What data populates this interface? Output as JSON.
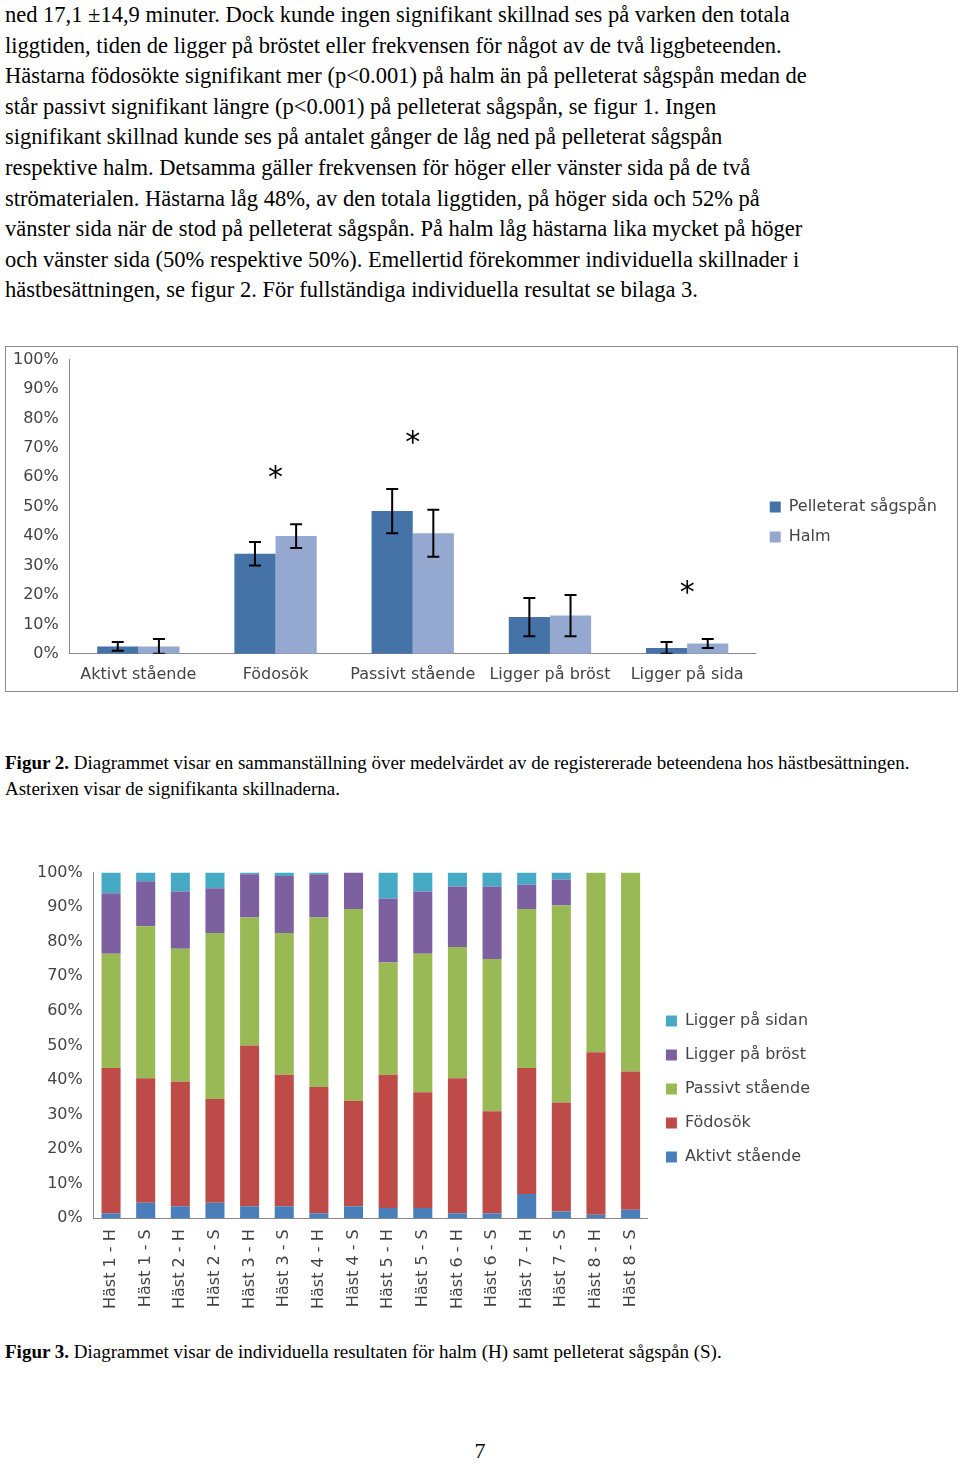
{
  "paragraph_lines": [
    "ned 17,1 ±14,9 minuter. Dock kunde ingen signifikant skillnad ses på varken den totala",
    "liggtiden, tiden de ligger på bröstet eller frekvensen för något av de två liggbeteenden.",
    "Hästarna födosökte signifikant mer (p<0.001) på halm än på pelleterat sågspån medan de",
    "står passivt signifikant längre (p<0.001) på pelleterat sågspån, se figur 1. Ingen",
    "signifikant skillnad kunde ses på antalet gånger de låg ned på pelleterat sågspån",
    "respektive halm. Detsamma gäller frekvensen för höger eller vänster sida på de två",
    "strömaterialen. Hästarna låg 48%, av den totala liggtiden, på höger sida och 52% på",
    "vänster sida när de stod på pelleterat sågspån. På halm låg hästarna lika mycket på höger",
    "och vänster sida (50% respektive 50%). Emellertid förekommer individuella skillnader i",
    "hästbesättningen, se figur 2. För fullständiga individuella resultat se bilaga 3."
  ],
  "chart_data": [
    {
      "type": "bar",
      "categories": [
        "Aktivt stående",
        "Födosök",
        "Passivt stående",
        "Ligger på bröst",
        "Ligger på sida"
      ],
      "series": [
        {
          "name": "Pelleterat sågspån",
          "color": "#4572a7",
          "values": [
            2.5,
            34,
            48.5,
            12.5,
            2
          ],
          "errors": [
            1.5,
            4,
            7.5,
            6.5,
            2
          ]
        },
        {
          "name": "Halm",
          "color": "#95a9d0",
          "values": [
            2.5,
            40,
            41,
            13,
            3.5
          ],
          "errors": [
            2.5,
            4,
            8,
            7,
            1.5
          ]
        }
      ],
      "annotations": [
        {
          "category": "Födosök",
          "text": "*"
        },
        {
          "category": "Passivt stående",
          "text": "*"
        },
        {
          "category": "Ligger på sida",
          "text": "*"
        }
      ],
      "ylim": [
        0,
        100
      ],
      "yticks": [
        {
          "value": 0,
          "label": "0%"
        },
        {
          "value": 10,
          "label": "10%"
        },
        {
          "value": 20,
          "label": "20%"
        },
        {
          "value": 30,
          "label": "30%"
        },
        {
          "value": 40,
          "label": "40%"
        },
        {
          "value": 50,
          "label": "50%"
        },
        {
          "value": 60,
          "label": "60%"
        },
        {
          "value": 70,
          "label": "70%"
        },
        {
          "value": 80,
          "label": "80%"
        },
        {
          "value": 90,
          "label": "90%"
        },
        {
          "value": 100,
          "label": "100%"
        }
      ],
      "grid": false,
      "legend": "right"
    },
    {
      "type": "bar",
      "stacked": true,
      "categories": [
        "Häst 1 - H",
        "Häst 1 - S",
        "Häst 2 - H",
        "Häst 2 - S",
        "Häst 3 - H",
        "Häst 3 - S",
        "Häst 4 - H",
        "Häst 4 - S",
        "Häst 5 - H",
        "Häst 5 - S",
        "Häst 6 - H",
        "Häst 6 - S",
        "Häst 7 - H",
        "Häst 7 - S",
        "Häst 8 - H",
        "Häst 8 - S"
      ],
      "series": [
        {
          "name": "Aktivt stående",
          "color": "#4a7ebb",
          "values": [
            1.5,
            4.5,
            3.5,
            4.5,
            3.5,
            3.5,
            1.5,
            3.5,
            3,
            3,
            1.5,
            1.5,
            7,
            2,
            1,
            2.5
          ]
        },
        {
          "name": "Födosök",
          "color": "#be4b48",
          "values": [
            42,
            36,
            36,
            30,
            46.5,
            38,
            36.5,
            30.5,
            38.5,
            33.5,
            39,
            29.5,
            36.5,
            31.5,
            47,
            40
          ]
        },
        {
          "name": "Passivt stående",
          "color": "#98b954",
          "values": [
            33,
            44,
            38.5,
            48,
            37,
            41,
            49,
            55.5,
            32.5,
            40,
            38,
            44,
            46,
            57,
            52,
            57.5
          ]
        },
        {
          "name": "Ligger på bröst",
          "color": "#7d60a0",
          "values": [
            17.5,
            13,
            16.5,
            13,
            12.5,
            16.5,
            12.5,
            10.5,
            18.5,
            18,
            17.5,
            21,
            7,
            7.5,
            0,
            0
          ]
        },
        {
          "name": "Ligger på sidan",
          "color": "#46aac5",
          "values": [
            6,
            2.5,
            5.5,
            4.5,
            0.5,
            1,
            0.5,
            0,
            7.5,
            5.5,
            4,
            4,
            3.5,
            2,
            0,
            0
          ]
        }
      ],
      "ylim": [
        0,
        100
      ],
      "yticks": [
        {
          "value": 0,
          "label": "0%"
        },
        {
          "value": 10,
          "label": "10%"
        },
        {
          "value": 20,
          "label": "20%"
        },
        {
          "value": 30,
          "label": "30%"
        },
        {
          "value": 40,
          "label": "40%"
        },
        {
          "value": 50,
          "label": "50%"
        },
        {
          "value": 60,
          "label": "60%"
        },
        {
          "value": 70,
          "label": "70%"
        },
        {
          "value": 80,
          "label": "80%"
        },
        {
          "value": 90,
          "label": "90%"
        },
        {
          "value": 100,
          "label": "100%"
        }
      ],
      "grid": false,
      "legend": "right"
    }
  ],
  "captions": [
    {
      "label": "Figur 2.",
      "text": "Diagrammet visar en sammanställning över medelvärdet av de registererade beteendena hos hästbesättningen. Asterixen visar de signifikanta skillnaderna."
    },
    {
      "label": "Figur 3.",
      "text": "Diagrammet visar de individuella resultaten för halm (H) samt pelleterat sågspån (S)."
    }
  ],
  "page_number": 7
}
